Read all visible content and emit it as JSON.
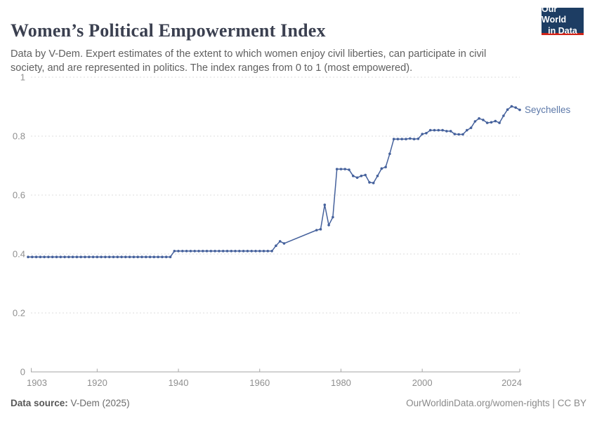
{
  "header": {
    "title": "Women’s Political Empowerment Index",
    "subtitle": "Data by V-Dem. Expert estimates of the extent to which women enjoy civil liberties, can participate in civil society, and are represented in politics. The index ranges from 0 to 1 (most empowered).",
    "logo": {
      "line1": "Our World",
      "line2": "in Data",
      "bg_color": "#1d3d63",
      "accent_color": "#cf2419"
    }
  },
  "chart_data": {
    "type": "line",
    "title": "Women's Political Empowerment Index",
    "xlabel": "",
    "ylabel": "",
    "xlim": [
      1903,
      2024
    ],
    "ylim": [
      0,
      1
    ],
    "grid": "dashed-horizontal",
    "legend_position": "end-of-line-label",
    "x_ticks": [
      1903,
      1920,
      1940,
      1960,
      1980,
      2000,
      2024
    ],
    "y_ticks": [
      0,
      0.2,
      0.4,
      0.6,
      0.8,
      1
    ],
    "y_tick_labels": [
      "0",
      "0.2",
      "0.4",
      "0.6",
      "0.8",
      "1"
    ],
    "colors": {
      "line": "#45619c",
      "entity_label": "#5d79a9",
      "gridline": "#dedede",
      "axis": "#a6a6a6",
      "tick_label": "#8f8f8f"
    },
    "series": [
      {
        "name": "Seychelles",
        "color": "#45619c",
        "points": [
          [
            1903,
            0.39
          ],
          [
            1904,
            0.39
          ],
          [
            1905,
            0.39
          ],
          [
            1906,
            0.39
          ],
          [
            1907,
            0.39
          ],
          [
            1908,
            0.39
          ],
          [
            1909,
            0.39
          ],
          [
            1910,
            0.39
          ],
          [
            1911,
            0.39
          ],
          [
            1912,
            0.39
          ],
          [
            1913,
            0.39
          ],
          [
            1914,
            0.39
          ],
          [
            1915,
            0.39
          ],
          [
            1916,
            0.39
          ],
          [
            1917,
            0.39
          ],
          [
            1918,
            0.39
          ],
          [
            1919,
            0.39
          ],
          [
            1920,
            0.39
          ],
          [
            1921,
            0.39
          ],
          [
            1922,
            0.39
          ],
          [
            1923,
            0.39
          ],
          [
            1924,
            0.39
          ],
          [
            1925,
            0.39
          ],
          [
            1926,
            0.39
          ],
          [
            1927,
            0.39
          ],
          [
            1928,
            0.39
          ],
          [
            1929,
            0.39
          ],
          [
            1930,
            0.39
          ],
          [
            1931,
            0.39
          ],
          [
            1932,
            0.39
          ],
          [
            1933,
            0.39
          ],
          [
            1934,
            0.39
          ],
          [
            1935,
            0.39
          ],
          [
            1936,
            0.39
          ],
          [
            1937,
            0.39
          ],
          [
            1938,
            0.39
          ],
          [
            1939,
            0.41
          ],
          [
            1940,
            0.41
          ],
          [
            1941,
            0.41
          ],
          [
            1942,
            0.41
          ],
          [
            1943,
            0.41
          ],
          [
            1944,
            0.41
          ],
          [
            1945,
            0.41
          ],
          [
            1946,
            0.41
          ],
          [
            1947,
            0.41
          ],
          [
            1948,
            0.41
          ],
          [
            1949,
            0.41
          ],
          [
            1950,
            0.41
          ],
          [
            1951,
            0.41
          ],
          [
            1952,
            0.41
          ],
          [
            1953,
            0.41
          ],
          [
            1954,
            0.41
          ],
          [
            1955,
            0.41
          ],
          [
            1956,
            0.41
          ],
          [
            1957,
            0.41
          ],
          [
            1958,
            0.41
          ],
          [
            1959,
            0.41
          ],
          [
            1960,
            0.41
          ],
          [
            1961,
            0.41
          ],
          [
            1962,
            0.41
          ],
          [
            1963,
            0.41
          ],
          [
            1964,
            0.428
          ],
          [
            1965,
            0.443
          ],
          [
            1966,
            0.436
          ],
          [
            1974,
            0.481
          ],
          [
            1975,
            0.484
          ],
          [
            1976,
            0.567
          ],
          [
            1977,
            0.498
          ],
          [
            1978,
            0.525
          ],
          [
            1979,
            0.688
          ],
          [
            1980,
            0.688
          ],
          [
            1981,
            0.688
          ],
          [
            1982,
            0.686
          ],
          [
            1983,
            0.665
          ],
          [
            1984,
            0.659
          ],
          [
            1985,
            0.665
          ],
          [
            1986,
            0.668
          ],
          [
            1987,
            0.643
          ],
          [
            1988,
            0.641
          ],
          [
            1989,
            0.665
          ],
          [
            1990,
            0.69
          ],
          [
            1991,
            0.695
          ],
          [
            1992,
            0.74
          ],
          [
            1993,
            0.79
          ],
          [
            1994,
            0.79
          ],
          [
            1995,
            0.79
          ],
          [
            1996,
            0.79
          ],
          [
            1997,
            0.792
          ],
          [
            1998,
            0.79
          ],
          [
            1999,
            0.791
          ],
          [
            2000,
            0.807
          ],
          [
            2001,
            0.81
          ],
          [
            2002,
            0.82
          ],
          [
            2003,
            0.82
          ],
          [
            2004,
            0.82
          ],
          [
            2005,
            0.82
          ],
          [
            2006,
            0.817
          ],
          [
            2007,
            0.817
          ],
          [
            2008,
            0.807
          ],
          [
            2009,
            0.806
          ],
          [
            2010,
            0.806
          ],
          [
            2011,
            0.82
          ],
          [
            2012,
            0.828
          ],
          [
            2013,
            0.85
          ],
          [
            2014,
            0.86
          ],
          [
            2015,
            0.855
          ],
          [
            2016,
            0.845
          ],
          [
            2017,
            0.847
          ],
          [
            2018,
            0.851
          ],
          [
            2019,
            0.845
          ],
          [
            2020,
            0.869
          ],
          [
            2021,
            0.89
          ],
          [
            2022,
            0.901
          ],
          [
            2023,
            0.897
          ],
          [
            2024,
            0.889
          ]
        ]
      }
    ]
  },
  "footer": {
    "source_label": "Data source:",
    "source_value": " V-Dem (2025)",
    "link_text": "OurWorldinData.org/women-rights | CC BY"
  }
}
